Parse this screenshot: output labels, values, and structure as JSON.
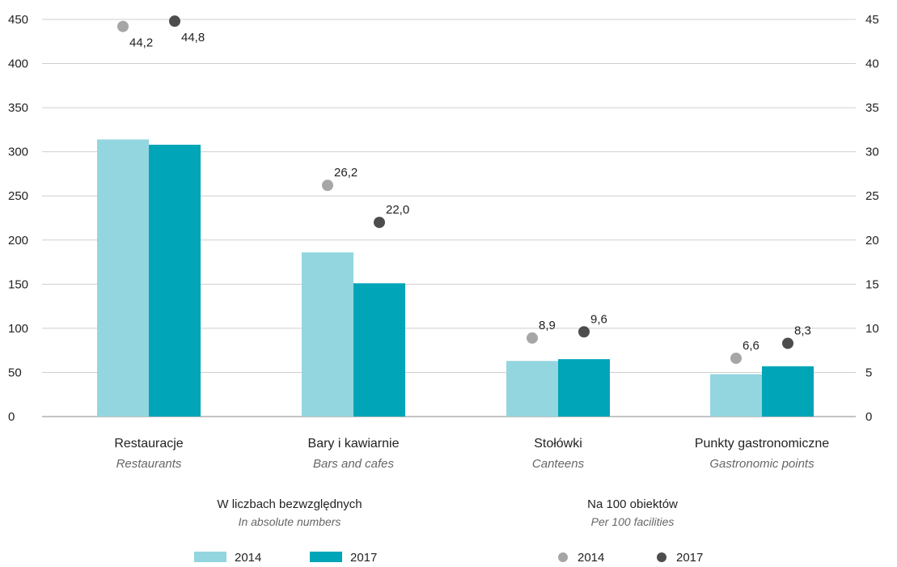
{
  "chart_data": {
    "type": "bar",
    "categories": [
      "Restauracje",
      "Bary i kawiarnie",
      "Stołówki",
      "Punkty gastronomiczne"
    ],
    "categories_en": [
      "Restaurants",
      "Bars and cafes",
      "Canteens",
      "Gastronomic points"
    ],
    "left_axis": {
      "ylim": [
        0,
        450
      ],
      "ticks": [
        "0",
        "50",
        "100",
        "150",
        "200",
        "250",
        "300",
        "350",
        "400",
        "450"
      ]
    },
    "right_axis": {
      "ylim": [
        0,
        45
      ],
      "ticks": [
        "0",
        "5",
        "10",
        "15",
        "20",
        "25",
        "30",
        "35",
        "40",
        "45"
      ]
    },
    "bar_series": [
      {
        "name": "2014",
        "color": "#93d6df",
        "values": [
          314,
          186,
          63,
          48
        ]
      },
      {
        "name": "2017",
        "color": "#00a5b8",
        "values": [
          308,
          151,
          65,
          57
        ]
      }
    ],
    "point_series": [
      {
        "name": "2014",
        "color": "#a6a6a6",
        "values": [
          44.2,
          26.2,
          8.9,
          6.6
        ],
        "labels": [
          "44,2",
          "26,2",
          "8,9",
          "6,6"
        ]
      },
      {
        "name": "2017",
        "color": "#4d4d4d",
        "values": [
          44.8,
          22.0,
          9.6,
          8.3
        ],
        "labels": [
          "44,8",
          "22,0",
          "9,6",
          "8,3"
        ]
      }
    ],
    "grid": true,
    "legend": {
      "bars": {
        "title": "W liczbach bezwzględnych",
        "subtitle": "In absolute numbers",
        "labels": [
          "2014",
          "2017"
        ]
      },
      "points": {
        "title": "Na 100 obiektów",
        "subtitle": "Per 100 facilities",
        "labels": [
          "2014",
          "2017"
        ]
      }
    }
  }
}
